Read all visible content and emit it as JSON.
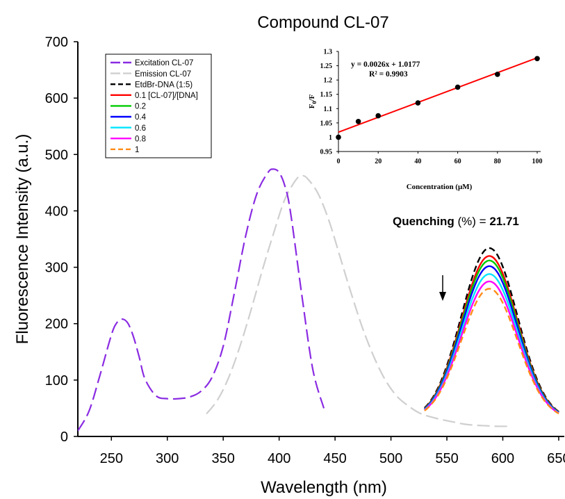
{
  "chart_data": [
    {
      "type": "line",
      "title": "Compound CL-07",
      "xlabel": "Wavelength (nm)",
      "ylabel": "Fluorescence Intensity (a.u.)",
      "xlim": [
        220,
        655
      ],
      "ylim": [
        0,
        700
      ],
      "xticks": [
        250,
        300,
        350,
        400,
        450,
        500,
        550,
        600,
        650
      ],
      "yticks": [
        0,
        100,
        200,
        300,
        400,
        500,
        600,
        700
      ],
      "grid": false,
      "legend_position": "top-left",
      "annotation": {
        "bold_part": "Quenching",
        "rest": " (%) = ",
        "value": "21.71"
      },
      "series": [
        {
          "name": "Excitation CL-07",
          "color": "#8a2be2",
          "dash": "long",
          "x": [
            220,
            230,
            240,
            250,
            255,
            260,
            265,
            270,
            275,
            280,
            290,
            300,
            310,
            320,
            330,
            340,
            350,
            360,
            370,
            380,
            390,
            395,
            400,
            405,
            410,
            420,
            430,
            440
          ],
          "y": [
            10,
            45,
            110,
            180,
            202,
            208,
            200,
            175,
            140,
            102,
            72,
            67,
            67,
            70,
            80,
            105,
            160,
            255,
            355,
            430,
            468,
            474,
            468,
            445,
            400,
            255,
            120,
            50
          ]
        },
        {
          "name": "Emission CL-07",
          "color": "#cfcfcf",
          "dash": "long",
          "x": [
            335,
            345,
            355,
            365,
            375,
            385,
            395,
            405,
            415,
            420,
            425,
            435,
            445,
            455,
            465,
            475,
            485,
            495,
            505,
            515,
            525,
            535,
            545,
            555,
            565,
            575,
            585,
            595,
            605
          ],
          "y": [
            40,
            65,
            105,
            160,
            225,
            295,
            360,
            420,
            455,
            462,
            458,
            430,
            380,
            315,
            250,
            190,
            140,
            100,
            72,
            55,
            42,
            35,
            30,
            26,
            22,
            20,
            19,
            18,
            18
          ]
        },
        {
          "name": "EtdBr-DNA (1:5)",
          "color": "#000000",
          "dash": "dash",
          "peak": 334
        },
        {
          "name": "0.1 [CL-07]/[DNA]",
          "color": "#ff0000",
          "dash": "solid",
          "peak": 320
        },
        {
          "name": "0.2",
          "color": "#00cc00",
          "dash": "solid",
          "peak": 312
        },
        {
          "name": "0.4",
          "color": "#0000ff",
          "dash": "solid",
          "peak": 302
        },
        {
          "name": "0.6",
          "color": "#00e5ff",
          "dash": "solid",
          "peak": 288
        },
        {
          "name": "0.8",
          "color": "#ff00ff",
          "dash": "solid",
          "peak": 275
        },
        {
          "name": "1",
          "color": "#ff8c1a",
          "dash": "dash",
          "peak": 262
        }
      ]
    },
    {
      "type": "scatter",
      "xlabel": "Concentration (μM)",
      "ylabel_main": "F",
      "ylabel_sub": "0",
      "ylabel_tail": "/F",
      "xlim": [
        0,
        100
      ],
      "ylim": [
        0.95,
        1.3
      ],
      "xticks": [
        0,
        20,
        40,
        60,
        80,
        100
      ],
      "yticks": [
        "0.95",
        "1",
        "1.05",
        "1.1",
        "1.15",
        "1.2",
        "1.25",
        "1.3"
      ],
      "equation": "y = 0.0026x + 1.0177",
      "r_squared": "R² = 0.9903",
      "fit": {
        "slope": 0.0026,
        "intercept": 1.0177,
        "color": "#ff0000"
      },
      "points": {
        "x": [
          0,
          10,
          20,
          40,
          60,
          80,
          100
        ],
        "y": [
          1.0,
          1.055,
          1.075,
          1.12,
          1.175,
          1.22,
          1.275
        ]
      }
    }
  ]
}
